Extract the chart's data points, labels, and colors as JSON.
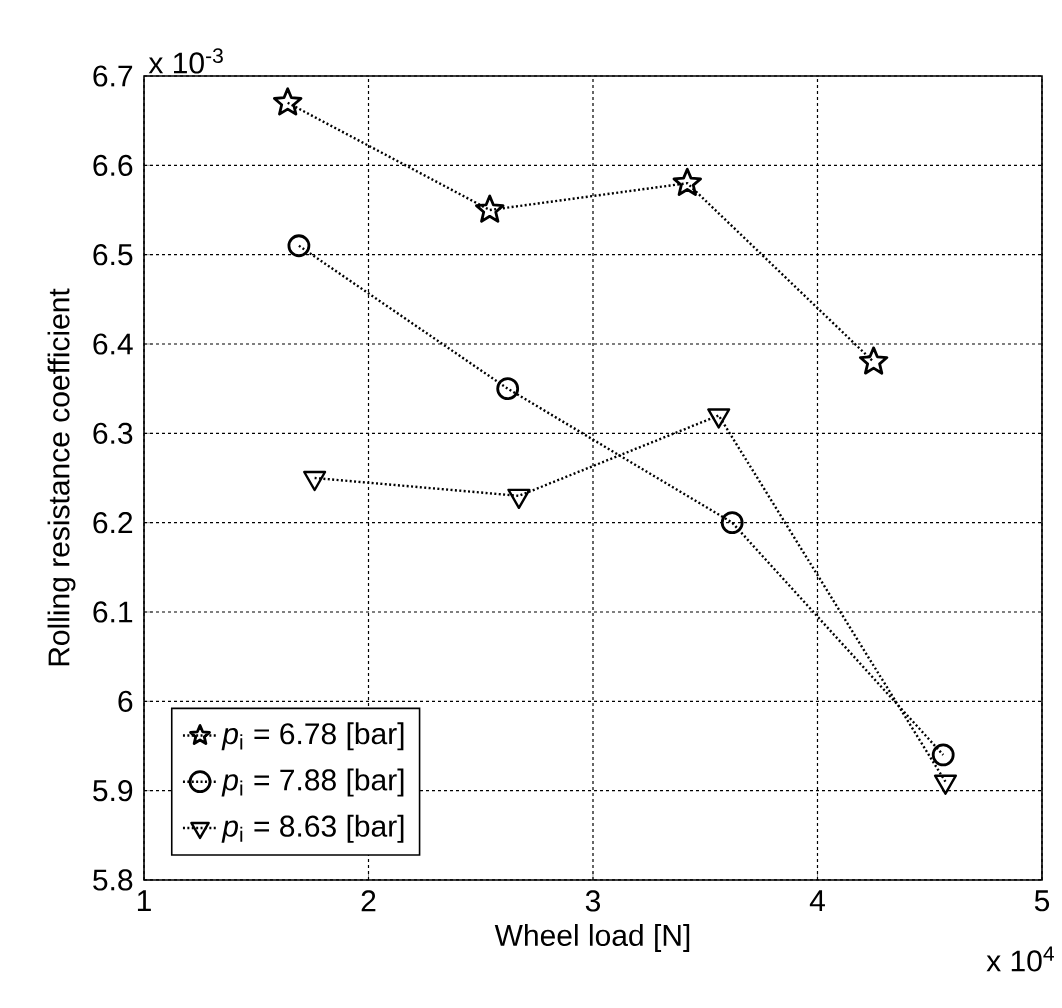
{
  "chart_data": {
    "type": "line",
    "xlabel": "Wheel load [N]",
    "ylabel": "Rolling resistance coefficient",
    "annotations": [
      "x 10$^{-3}$",
      "x 10$^{4}$"
    ],
    "xlim": [
      1,
      5
    ],
    "xticks": [
      1,
      2,
      3,
      4,
      5
    ],
    "ylim": [
      5.8,
      6.7
    ],
    "yticks": [
      5.8,
      5.9,
      6,
      6.1,
      6.2,
      6.3,
      6.4,
      6.5,
      6.6,
      6.7
    ],
    "grid": true,
    "legend": "bottom left",
    "line_style": "dotted",
    "series": [
      {
        "name": "*p*$_{i}$ = 6.78 [bar]",
        "color": "#000000",
        "marker": "star",
        "x": [
          1.64,
          2.54,
          3.42,
          4.25
        ],
        "values": [
          6.67,
          6.55,
          6.58,
          6.38
        ]
      },
      {
        "name": "*p*$_{i}$ = 7.88 [bar]",
        "color": "#000000",
        "marker": "circle",
        "x": [
          1.69,
          2.62,
          3.62,
          4.56
        ],
        "values": [
          6.51,
          6.35,
          6.2,
          5.94
        ]
      },
      {
        "name": "*p*$_{i}$ = 8.63 [bar]",
        "color": "#000000",
        "marker": "triangle",
        "x": [
          1.76,
          2.67,
          3.56,
          4.57
        ],
        "values": [
          6.25,
          6.23,
          6.32,
          5.91
        ]
      }
    ]
  }
}
